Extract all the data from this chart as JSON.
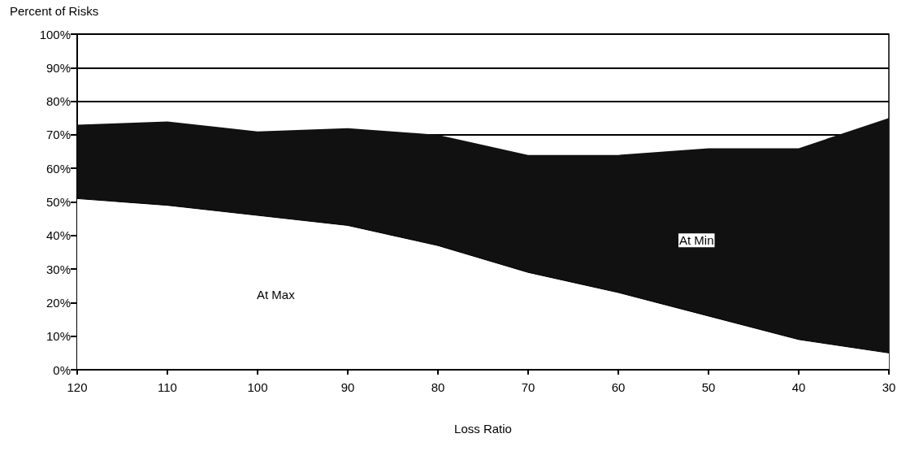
{
  "chart_data": {
    "type": "area",
    "stacked": true,
    "xlabel": "Loss Ratio",
    "ylabel": "Percent of Risks",
    "categories": [
      "120",
      "110",
      "100",
      "90",
      "80",
      "70",
      "60",
      "50",
      "40",
      "30"
    ],
    "series": [
      {
        "name": "At Max",
        "color": "#ffffff",
        "values": [
          51,
          49,
          46,
          43,
          37,
          29,
          23,
          16,
          9,
          5
        ]
      },
      {
        "name": "At Min",
        "color": "#111111",
        "values": [
          22,
          25,
          25,
          29,
          33,
          35,
          41,
          50,
          57,
          70
        ]
      }
    ],
    "ylim": [
      0,
      100
    ],
    "yticks": [
      {
        "value": 0,
        "label": "0%"
      },
      {
        "value": 10,
        "label": "10%"
      },
      {
        "value": 20,
        "label": "20%"
      },
      {
        "value": 30,
        "label": "30%"
      },
      {
        "value": 40,
        "label": "40%"
      },
      {
        "value": 50,
        "label": "50%"
      },
      {
        "value": 60,
        "label": "60%"
      },
      {
        "value": 70,
        "label": "70%"
      },
      {
        "value": 80,
        "label": "80%"
      },
      {
        "value": 90,
        "label": "90%"
      },
      {
        "value": 100,
        "label": "100%"
      }
    ],
    "grid": "y",
    "legend": false
  }
}
